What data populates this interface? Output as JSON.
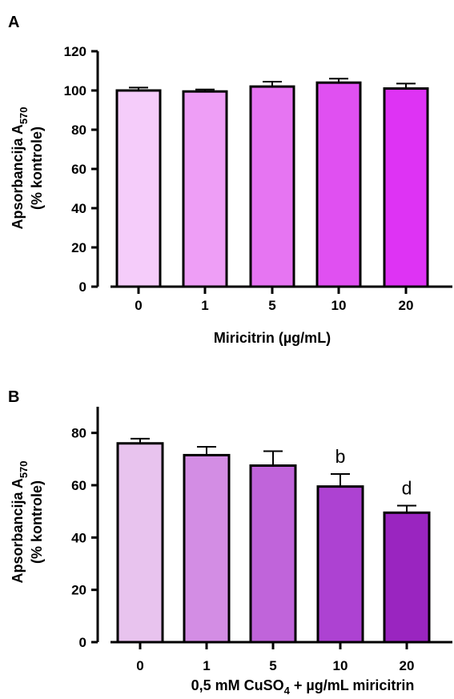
{
  "chart_data": [
    {
      "type": "bar",
      "panel": "A",
      "categories": [
        "0",
        "1",
        "5",
        "10",
        "20"
      ],
      "values": [
        100,
        99.5,
        102,
        104,
        101
      ],
      "errors": [
        1.5,
        1.0,
        2.5,
        2.0,
        2.5
      ],
      "ylabel": "Apsorbancija A",
      "ylabel_subscript": "570",
      "ylabel_line2": "(% kontrole)",
      "xlabel": "Miricitrin (µg/mL)",
      "ylim": [
        0,
        120
      ],
      "yticks": [
        0,
        20,
        40,
        60,
        80,
        100,
        120
      ],
      "bar_colors": [
        "#F5CCFA",
        "#EE9EF6",
        "#E675F2",
        "#E050F1",
        "#DE33F4"
      ],
      "annotations": [
        "",
        "",
        "",
        "",
        ""
      ],
      "grid": false,
      "error_bars": true
    },
    {
      "type": "bar",
      "panel": "B",
      "categories": [
        "0",
        "1",
        "5",
        "10",
        "20"
      ],
      "values": [
        76,
        71.5,
        67.5,
        59.5,
        49.5
      ],
      "errors": [
        1.8,
        3.2,
        5.5,
        4.8,
        2.7
      ],
      "ylabel": "Apsorbancija A",
      "ylabel_subscript": "570",
      "ylabel_line2": "(% kontrole)",
      "xlabel_parts": [
        "0,5 mM CuSO",
        "4",
        " + µg/mL miricitrin"
      ],
      "ylim": [
        0,
        90
      ],
      "yticks": [
        0,
        20,
        40,
        60,
        80
      ],
      "bar_colors": [
        "#E8C3EE",
        "#D38DE4",
        "#C064DA",
        "#AD42D2",
        "#9A25C0"
      ],
      "annotations": [
        "",
        "",
        "",
        "b",
        "d"
      ],
      "grid": false,
      "error_bars": true
    }
  ]
}
